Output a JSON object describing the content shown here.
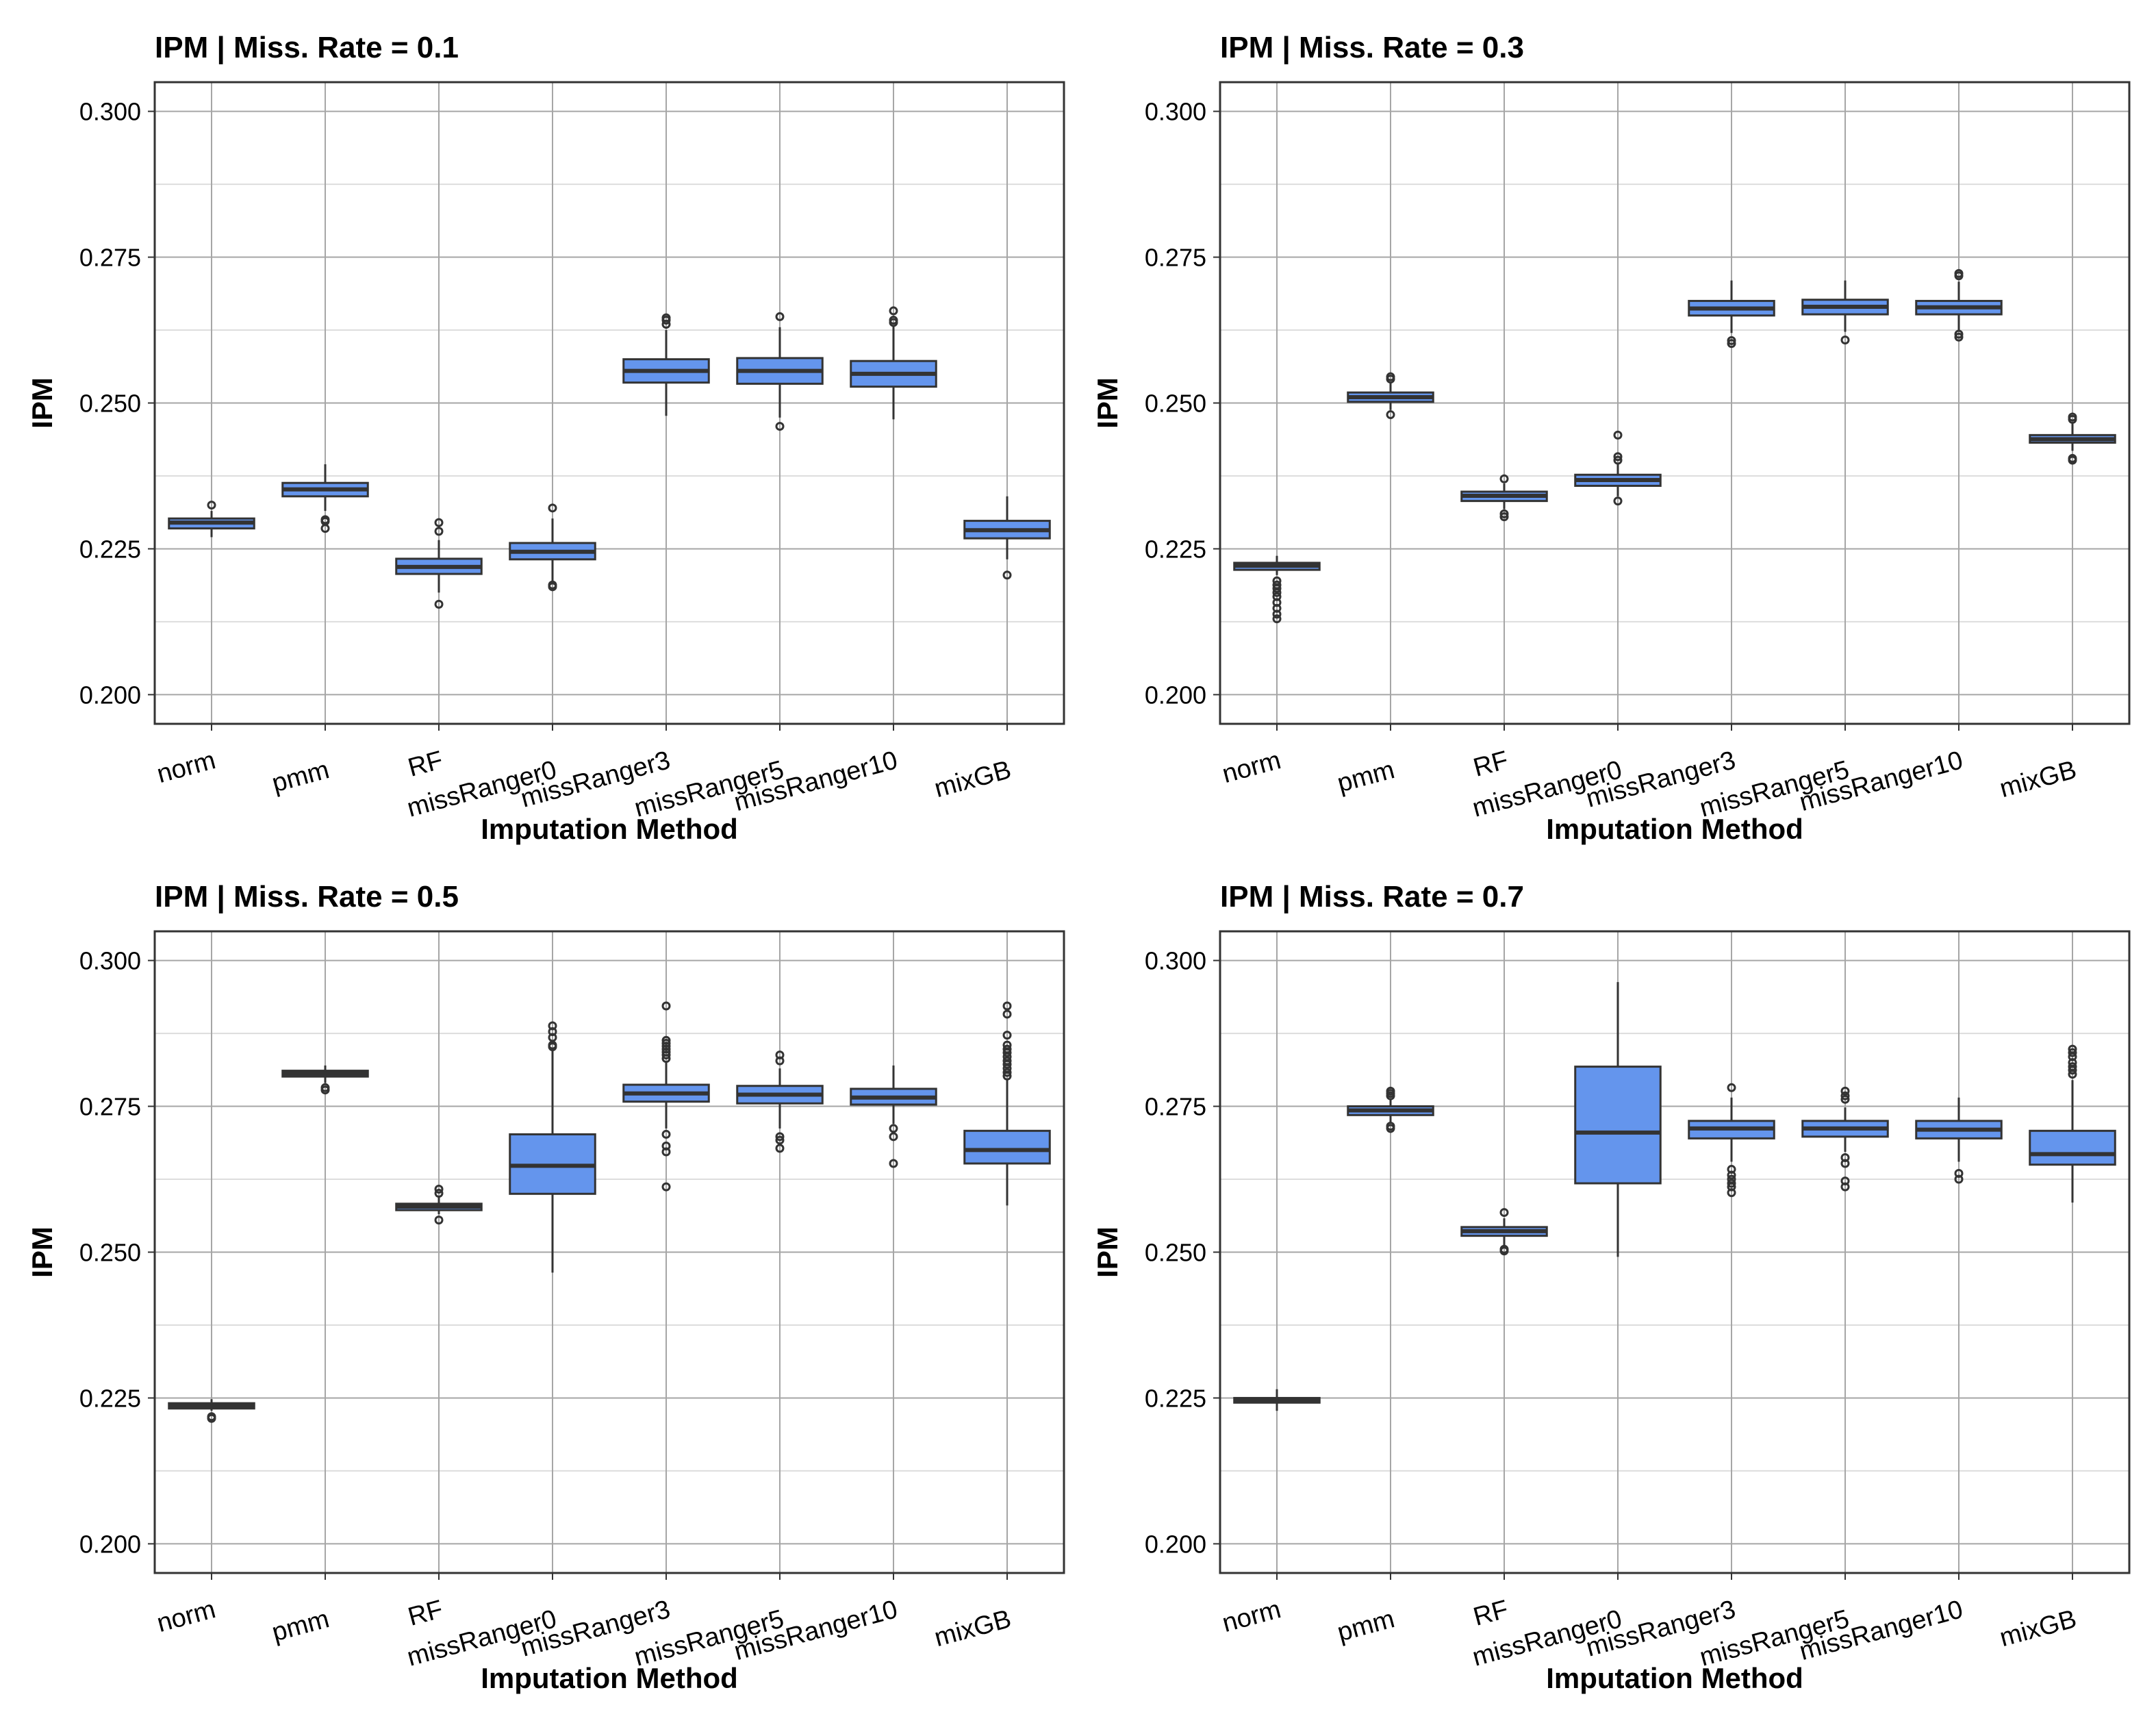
{
  "colors": {
    "box_fill": "#6495ed",
    "box_line": "#333333",
    "grid_major": "#a6a6a6",
    "grid_minor": "#dddddd",
    "panel_border": "#333333"
  },
  "chart_data": [
    {
      "type": "boxplot",
      "title": "IPM | Miss. Rate = 0.1",
      "xlabel": "Imputation Method",
      "ylabel": "IPM",
      "ylim": [
        0.195,
        0.305
      ],
      "yticks": [
        "0.200",
        "0.225",
        "0.250",
        "0.275",
        "0.300"
      ],
      "categories": [
        "norm",
        "pmm",
        "RF",
        "missRanger0",
        "missRanger3",
        "missRanger5",
        "missRanger10",
        "mixGB"
      ],
      "boxes": [
        {
          "whisker_low": 0.227,
          "q1": 0.2285,
          "median": 0.2295,
          "q3": 0.2302,
          "whisker_high": 0.2315,
          "outliers": [
            0.2325
          ]
        },
        {
          "whisker_low": 0.2315,
          "q1": 0.234,
          "median": 0.2352,
          "q3": 0.2363,
          "whisker_high": 0.2395,
          "outliers": [
            0.23,
            0.2297,
            0.2285
          ]
        },
        {
          "whisker_low": 0.2175,
          "q1": 0.2207,
          "median": 0.2219,
          "q3": 0.2233,
          "whisker_high": 0.2265,
          "outliers": [
            0.2155,
            0.228,
            0.2295
          ]
        },
        {
          "whisker_low": 0.2195,
          "q1": 0.2232,
          "median": 0.2245,
          "q3": 0.226,
          "whisker_high": 0.2302,
          "outliers": [
            0.2185,
            0.2188,
            0.232
          ]
        },
        {
          "whisker_low": 0.2478,
          "q1": 0.2535,
          "median": 0.2555,
          "q3": 0.2575,
          "whisker_high": 0.2625,
          "outliers": [
            0.2635,
            0.2642,
            0.2646
          ]
        },
        {
          "whisker_low": 0.2475,
          "q1": 0.2533,
          "median": 0.2555,
          "q3": 0.2577,
          "whisker_high": 0.263,
          "outliers": [
            0.246,
            0.2648
          ]
        },
        {
          "whisker_low": 0.2472,
          "q1": 0.2528,
          "median": 0.255,
          "q3": 0.2572,
          "whisker_high": 0.2632,
          "outliers": [
            0.2638,
            0.2642,
            0.2658
          ]
        },
        {
          "whisker_low": 0.2232,
          "q1": 0.2268,
          "median": 0.2282,
          "q3": 0.2298,
          "whisker_high": 0.234,
          "outliers": [
            0.2205
          ]
        }
      ]
    },
    {
      "type": "boxplot",
      "title": "IPM | Miss. Rate = 0.3",
      "xlabel": "Imputation Method",
      "ylabel": "IPM",
      "ylim": [
        0.195,
        0.305
      ],
      "yticks": [
        "0.200",
        "0.225",
        "0.250",
        "0.275",
        "0.300"
      ],
      "categories": [
        "norm",
        "pmm",
        "RF",
        "missRanger0",
        "missRanger3",
        "missRanger5",
        "missRanger10",
        "mixGB"
      ],
      "boxes": [
        {
          "whisker_low": 0.2205,
          "q1": 0.2214,
          "median": 0.2221,
          "q3": 0.2226,
          "whisker_high": 0.2238,
          "outliers": [
            0.2195,
            0.2188,
            0.2182,
            0.2175,
            0.2168,
            0.2158,
            0.2148,
            0.2138,
            0.213
          ]
        },
        {
          "whisker_low": 0.2488,
          "q1": 0.2502,
          "median": 0.251,
          "q3": 0.2518,
          "whisker_high": 0.2535,
          "outliers": [
            0.248,
            0.2541,
            0.2545
          ]
        },
        {
          "whisker_low": 0.2318,
          "q1": 0.2332,
          "median": 0.2341,
          "q3": 0.2348,
          "whisker_high": 0.2362,
          "outliers": [
            0.2305,
            0.231,
            0.237
          ]
        },
        {
          "whisker_low": 0.234,
          "q1": 0.2358,
          "median": 0.2368,
          "q3": 0.2377,
          "whisker_high": 0.2395,
          "outliers": [
            0.2332,
            0.2402,
            0.2408,
            0.2445
          ]
        },
        {
          "whisker_low": 0.262,
          "q1": 0.265,
          "median": 0.2662,
          "q3": 0.2675,
          "whisker_high": 0.271,
          "outliers": [
            0.2602,
            0.2607
          ]
        },
        {
          "whisker_low": 0.2622,
          "q1": 0.2652,
          "median": 0.2665,
          "q3": 0.2677,
          "whisker_high": 0.271,
          "outliers": [
            0.2608
          ]
        },
        {
          "whisker_low": 0.2622,
          "q1": 0.2652,
          "median": 0.2664,
          "q3": 0.2675,
          "whisker_high": 0.2708,
          "outliers": [
            0.2613,
            0.2618,
            0.2718,
            0.2722
          ]
        },
        {
          "whisker_low": 0.2418,
          "q1": 0.2432,
          "median": 0.2438,
          "q3": 0.2445,
          "whisker_high": 0.2465,
          "outliers": [
            0.2402,
            0.2405,
            0.2472,
            0.2476
          ]
        }
      ]
    },
    {
      "type": "boxplot",
      "title": "IPM | Miss. Rate = 0.5",
      "xlabel": "Imputation Method",
      "ylabel": "IPM",
      "ylim": [
        0.195,
        0.305
      ],
      "yticks": [
        "0.200",
        "0.225",
        "0.250",
        "0.275",
        "0.300"
      ],
      "categories": [
        "norm",
        "pmm",
        "RF",
        "missRanger0",
        "missRanger3",
        "missRanger5",
        "missRanger10",
        "mixGB"
      ],
      "boxes": [
        {
          "whisker_low": 0.2228,
          "q1": 0.2232,
          "median": 0.2237,
          "q3": 0.2241,
          "whisker_high": 0.2248,
          "outliers": [
            0.2215,
            0.2218
          ]
        },
        {
          "whisker_low": 0.279,
          "q1": 0.2801,
          "median": 0.2806,
          "q3": 0.2811,
          "whisker_high": 0.282,
          "outliers": [
            0.2778,
            0.2782
          ]
        },
        {
          "whisker_low": 0.2565,
          "q1": 0.2572,
          "median": 0.2578,
          "q3": 0.2583,
          "whisker_high": 0.2595,
          "outliers": [
            0.2555,
            0.2601,
            0.2608
          ]
        },
        {
          "whisker_low": 0.2465,
          "q1": 0.26,
          "median": 0.2648,
          "q3": 0.2702,
          "whisker_high": 0.2845,
          "outliers": [
            0.2852,
            0.2855,
            0.2868,
            0.2878,
            0.2888
          ]
        },
        {
          "whisker_low": 0.2712,
          "q1": 0.2758,
          "median": 0.2772,
          "q3": 0.2787,
          "whisker_high": 0.2825,
          "outliers": [
            0.2612,
            0.2672,
            0.2682,
            0.2702,
            0.2832,
            0.2838,
            0.2843,
            0.2848,
            0.2853,
            0.2858,
            0.2863,
            0.2922
          ]
        },
        {
          "whisker_low": 0.2712,
          "q1": 0.2755,
          "median": 0.277,
          "q3": 0.2785,
          "whisker_high": 0.2815,
          "outliers": [
            0.2678,
            0.2692,
            0.2698,
            0.2828,
            0.2838
          ]
        },
        {
          "whisker_low": 0.272,
          "q1": 0.2753,
          "median": 0.2765,
          "q3": 0.278,
          "whisker_high": 0.282,
          "outliers": [
            0.2652,
            0.2698,
            0.2712
          ]
        },
        {
          "whisker_low": 0.258,
          "q1": 0.2652,
          "median": 0.2675,
          "q3": 0.2708,
          "whisker_high": 0.2795,
          "outliers": [
            0.2802,
            0.2808,
            0.2815,
            0.2822,
            0.2828,
            0.2835,
            0.2842,
            0.2848,
            0.2855,
            0.2872,
            0.2908,
            0.2922
          ]
        }
      ]
    },
    {
      "type": "boxplot",
      "title": "IPM | Miss. Rate = 0.7",
      "xlabel": "Imputation Method",
      "ylabel": "IPM",
      "ylim": [
        0.195,
        0.305
      ],
      "yticks": [
        "0.200",
        "0.225",
        "0.250",
        "0.275",
        "0.300"
      ],
      "categories": [
        "norm",
        "pmm",
        "RF",
        "missRanger0",
        "missRanger3",
        "missRanger5",
        "missRanger10",
        "mixGB"
      ],
      "boxes": [
        {
          "whisker_low": 0.2228,
          "q1": 0.2242,
          "median": 0.2246,
          "q3": 0.225,
          "whisker_high": 0.2265,
          "outliers": []
        },
        {
          "whisker_low": 0.2722,
          "q1": 0.2735,
          "median": 0.2743,
          "q3": 0.275,
          "whisker_high": 0.2762,
          "outliers": [
            0.2712,
            0.2716,
            0.2768,
            0.2772,
            0.2776
          ]
        },
        {
          "whisker_low": 0.2512,
          "q1": 0.2528,
          "median": 0.2536,
          "q3": 0.2543,
          "whisker_high": 0.2558,
          "outliers": [
            0.2502,
            0.2505,
            0.2568
          ]
        },
        {
          "whisker_low": 0.2492,
          "q1": 0.2618,
          "median": 0.2705,
          "q3": 0.2818,
          "whisker_high": 0.2963,
          "outliers": []
        },
        {
          "whisker_low": 0.2655,
          "q1": 0.2695,
          "median": 0.2712,
          "q3": 0.2725,
          "whisker_high": 0.2765,
          "outliers": [
            0.2602,
            0.2612,
            0.2618,
            0.2625,
            0.2632,
            0.2642,
            0.2782
          ]
        },
        {
          "whisker_low": 0.2672,
          "q1": 0.2698,
          "median": 0.2712,
          "q3": 0.2725,
          "whisker_high": 0.2748,
          "outliers": [
            0.2612,
            0.2622,
            0.2652,
            0.2662,
            0.2762,
            0.2768,
            0.2776
          ]
        },
        {
          "whisker_low": 0.2655,
          "q1": 0.2695,
          "median": 0.271,
          "q3": 0.2725,
          "whisker_high": 0.2765,
          "outliers": [
            0.2625,
            0.2635
          ]
        },
        {
          "whisker_low": 0.2585,
          "q1": 0.265,
          "median": 0.2668,
          "q3": 0.2708,
          "whisker_high": 0.2795,
          "outliers": [
            0.2805,
            0.2812,
            0.2818,
            0.2825,
            0.2835,
            0.2842,
            0.2848
          ]
        }
      ]
    }
  ]
}
